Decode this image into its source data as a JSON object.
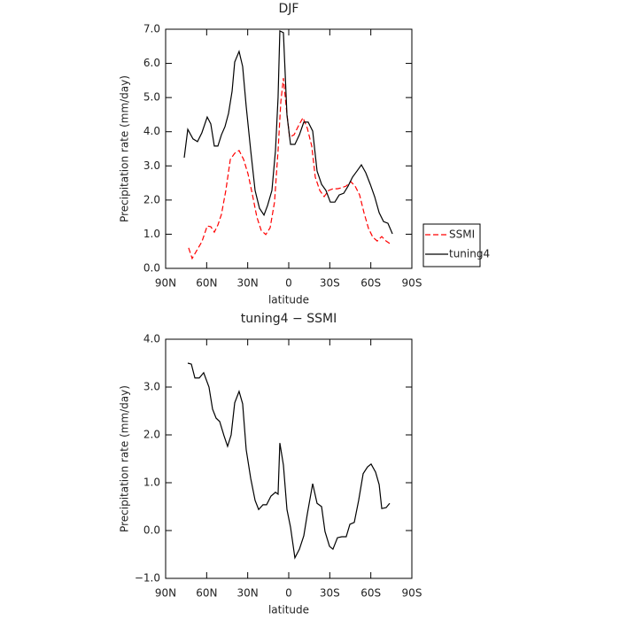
{
  "chart_data": [
    {
      "type": "line",
      "title": "DJF",
      "xlabel": "latitude",
      "ylabel": "Precipitation rate (mm/day)",
      "xlim": [
        90,
        -90
      ],
      "xticks": [
        {
          "value": 90,
          "label": "90N"
        },
        {
          "value": 60,
          "label": "60N"
        },
        {
          "value": 30,
          "label": "30N"
        },
        0,
        {
          "value": -30,
          "label": "30S"
        },
        {
          "value": -60,
          "label": "60S"
        },
        {
          "value": -90,
          "label": "90S"
        }
      ],
      "ylim": [
        0,
        7
      ],
      "yticks": [
        {
          "value": 0,
          "label": "0.0"
        },
        {
          "value": 1,
          "label": "1.0"
        },
        {
          "value": 2,
          "label": "2.0"
        },
        {
          "value": 3,
          "label": "3.0"
        },
        {
          "value": 4,
          "label": "4.0"
        },
        {
          "value": 5,
          "label": "5.0"
        },
        {
          "value": 6,
          "label": "6.0"
        },
        {
          "value": 7,
          "label": "7.0"
        }
      ],
      "legend": "right",
      "series": [
        {
          "name": "SSMI",
          "color": "#ff0000",
          "line_style": "dashed",
          "x": [
            73.2,
            70.6,
            67.3,
            63.5,
            59.6,
            57,
            54.4,
            51.8,
            49.2,
            46,
            42.7,
            39.5,
            36.3,
            33,
            29.8,
            26.5,
            23.3,
            20.1,
            16.8,
            13.6,
            10.4,
            7.8,
            5.8,
            3.9,
            1.9,
            -0.6,
            -3.9,
            -7.1,
            -10.4,
            -13.6,
            -16.8,
            -19.4,
            -22.7,
            -25.9,
            -29.1,
            -32.3,
            -35.6,
            -38.8,
            -42,
            -45.3,
            -48.5,
            -51.8,
            -55,
            -58.3,
            -61.5,
            -64.7,
            -68,
            -71.2,
            -73.8
          ],
          "values": [
            0.6,
            0.29,
            0.52,
            0.78,
            1.24,
            1.22,
            1.06,
            1.27,
            1.58,
            2.28,
            3.19,
            3.37,
            3.45,
            3.19,
            2.77,
            2.15,
            1.5,
            1.11,
            0.99,
            1.19,
            1.94,
            3.45,
            4.87,
            5.57,
            4.74,
            3.84,
            3.91,
            4.17,
            4.41,
            4.1,
            3.58,
            2.67,
            2.28,
            2.1,
            2.28,
            2.33,
            2.33,
            2.36,
            2.41,
            2.54,
            2.41,
            2.15,
            1.63,
            1.17,
            0.91,
            0.8,
            0.93,
            0.8,
            0.73
          ]
        },
        {
          "name": "tuning4",
          "color": "#000000",
          "line_style": "solid",
          "x": [
            76.4,
            73.8,
            70,
            66.7,
            63.5,
            59.6,
            57,
            54.4,
            51.8,
            49.2,
            46.6,
            44,
            41.4,
            39.5,
            36.3,
            33.7,
            31.1,
            27.8,
            24.6,
            21.4,
            18.1,
            15.5,
            12.3,
            9.7,
            7.8,
            6.5,
            3.9,
            1.3,
            -1.3,
            -4.5,
            -7.8,
            -11,
            -14.2,
            -17.5,
            -20.7,
            -24,
            -27.2,
            -30.4,
            -33.7,
            -36.9,
            -40.2,
            -43.4,
            -46.6,
            -49.9,
            -53.1,
            -56.3,
            -59.6,
            -62.8,
            -66.1,
            -69.3,
            -72.5,
            -75.8
          ],
          "values": [
            3.24,
            4.07,
            3.79,
            3.71,
            3.97,
            4.43,
            4.23,
            3.58,
            3.58,
            3.91,
            4.15,
            4.54,
            5.19,
            6.04,
            6.35,
            5.91,
            4.74,
            3.45,
            2.28,
            1.76,
            1.56,
            1.84,
            2.28,
            3.45,
            5.0,
            6.95,
            6.9,
            4.49,
            3.63,
            3.63,
            3.91,
            4.28,
            4.28,
            4.02,
            2.85,
            2.46,
            2.28,
            1.94,
            1.94,
            2.15,
            2.2,
            2.41,
            2.67,
            2.85,
            3.03,
            2.8,
            2.46,
            2.1,
            1.63,
            1.37,
            1.32,
            1.01
          ]
        }
      ]
    },
    {
      "type": "line",
      "title": "tuning4 − SSMI",
      "xlabel": "latitude",
      "ylabel": "Precipitation rate (mm/day)",
      "xlim": [
        90,
        -90
      ],
      "xticks": [
        {
          "value": 90,
          "label": "90N"
        },
        {
          "value": 60,
          "label": "60N"
        },
        {
          "value": 30,
          "label": "30N"
        },
        0,
        {
          "value": -30,
          "label": "30S"
        },
        {
          "value": -60,
          "label": "60S"
        },
        {
          "value": -90,
          "label": "90S"
        }
      ],
      "ylim": [
        -1,
        4
      ],
      "yticks": [
        {
          "value": -1,
          "label": "−1.0"
        },
        {
          "value": 0,
          "label": "0.0"
        },
        {
          "value": 1,
          "label": "1.0"
        },
        {
          "value": 2,
          "label": "2.0"
        },
        {
          "value": 3,
          "label": "3.0"
        },
        {
          "value": 4,
          "label": "4.0"
        }
      ],
      "series": [
        {
          "color": "#000000",
          "line_style": "solid",
          "x": [
            73.8,
            71.2,
            68.6,
            65.4,
            62.2,
            58.3,
            55.7,
            53.1,
            50.5,
            47.3,
            44.7,
            42.1,
            39.5,
            36.3,
            33.7,
            31.1,
            27.8,
            24.6,
            22,
            18.8,
            16.2,
            13,
            9.7,
            7.8,
            6.5,
            3.9,
            1.3,
            -1.3,
            -4.5,
            -7.8,
            -11,
            -13.6,
            -17.5,
            -20.7,
            -24,
            -26.5,
            -29.8,
            -32.3,
            -35.6,
            -38.8,
            -42,
            -44.7,
            -47.9,
            -51.1,
            -54.4,
            -57.6,
            -60.2,
            -63.5,
            -66.1,
            -68,
            -71.2,
            -73.8
          ],
          "values": [
            3.5,
            3.48,
            3.19,
            3.19,
            3.3,
            3.0,
            2.54,
            2.35,
            2.28,
            1.98,
            1.76,
            2.0,
            2.67,
            2.91,
            2.65,
            1.69,
            1.09,
            0.63,
            0.44,
            0.54,
            0.54,
            0.72,
            0.8,
            0.76,
            1.83,
            1.37,
            0.44,
            0.07,
            -0.57,
            -0.39,
            -0.11,
            0.35,
            0.98,
            0.57,
            0.5,
            -0.02,
            -0.33,
            -0.39,
            -0.15,
            -0.13,
            -0.13,
            0.13,
            0.17,
            0.63,
            1.19,
            1.33,
            1.39,
            1.22,
            0.96,
            0.46,
            0.48,
            0.57
          ]
        }
      ]
    }
  ]
}
